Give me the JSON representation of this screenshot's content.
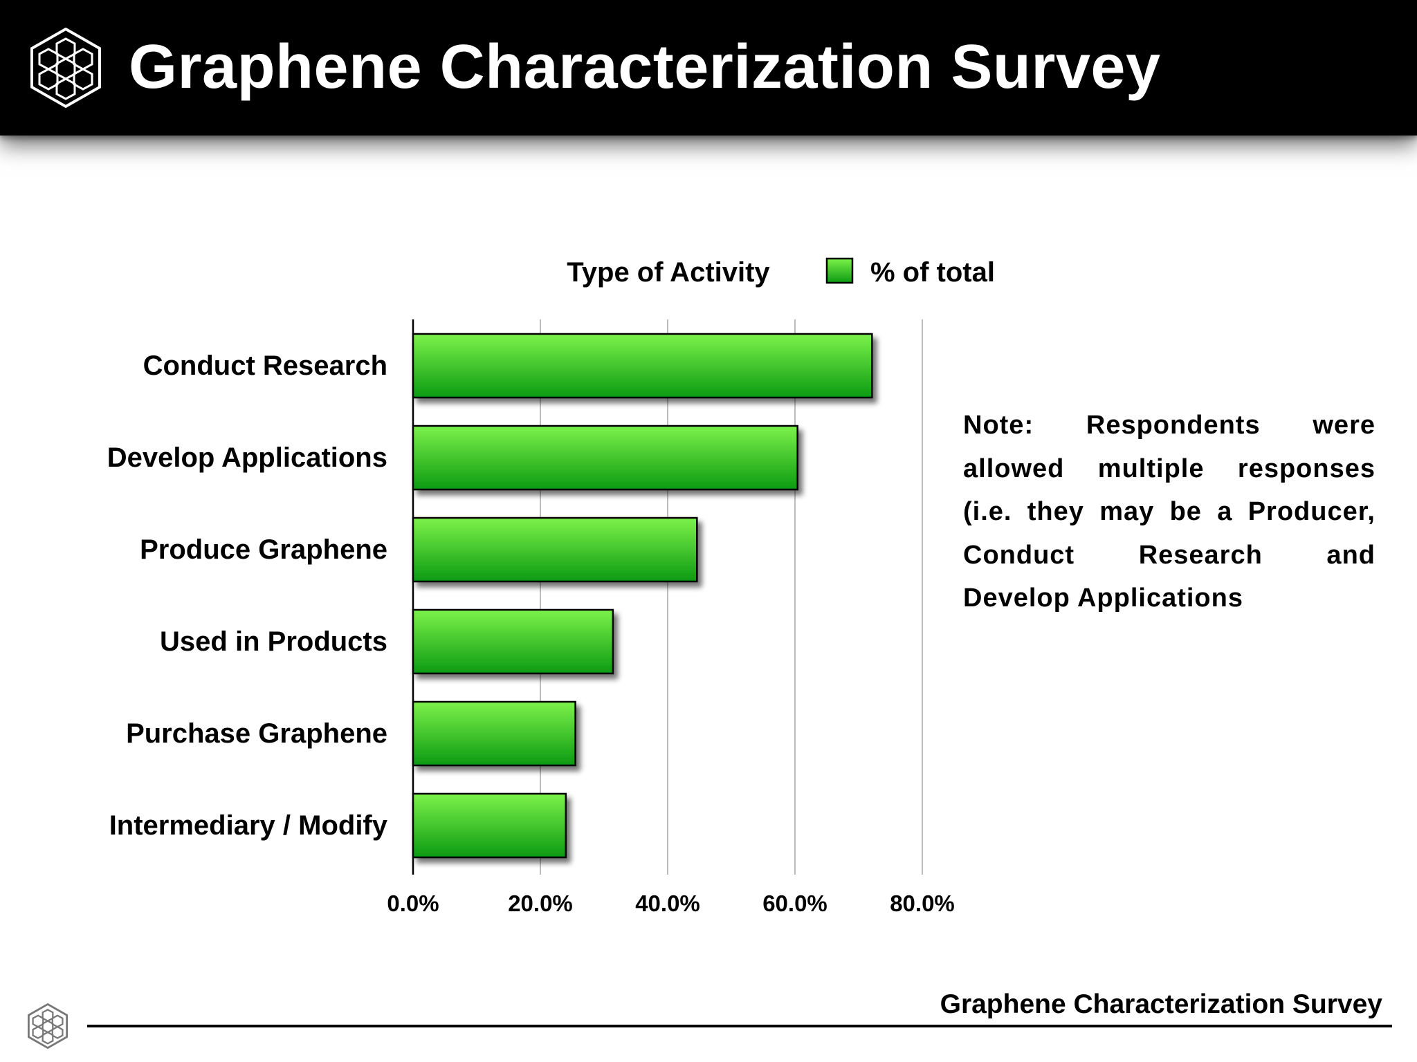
{
  "header": {
    "title": "Graphene Characterization Survey",
    "logo_icon": "hexagon-molecule-icon"
  },
  "note": {
    "text": "Note: Respondents were allowed multiple responses (i.e. they may be a Producer, Conduct Research and Develop Applications"
  },
  "footer": {
    "title": "Graphene Characterization Survey",
    "logo_icon": "hexagon-molecule-icon"
  },
  "colors": {
    "bar_light": "#7cf24a",
    "bar_dark": "#0c9a12",
    "bar_border": "#000000",
    "grid": "#bdbdbd",
    "header_bg": "#000000"
  },
  "chart_data": {
    "type": "bar",
    "orientation": "horizontal",
    "title": "Type of Activity",
    "xlabel": "",
    "ylabel": "",
    "categories": [
      "Conduct Research",
      "Develop Applications",
      "Produce Graphene",
      "Used in Products",
      "Purchase Graphene",
      "Intermediary / Modify"
    ],
    "series": [
      {
        "name": "% of total",
        "values": [
          72.1,
          60.4,
          44.6,
          31.4,
          25.5,
          24.0
        ]
      }
    ],
    "xlim": [
      0,
      80
    ],
    "xticks": [
      "0.0%",
      "20.0%",
      "40.0%",
      "60.0%",
      "80.0%"
    ],
    "grid": "vertical",
    "legend": "top-right"
  }
}
